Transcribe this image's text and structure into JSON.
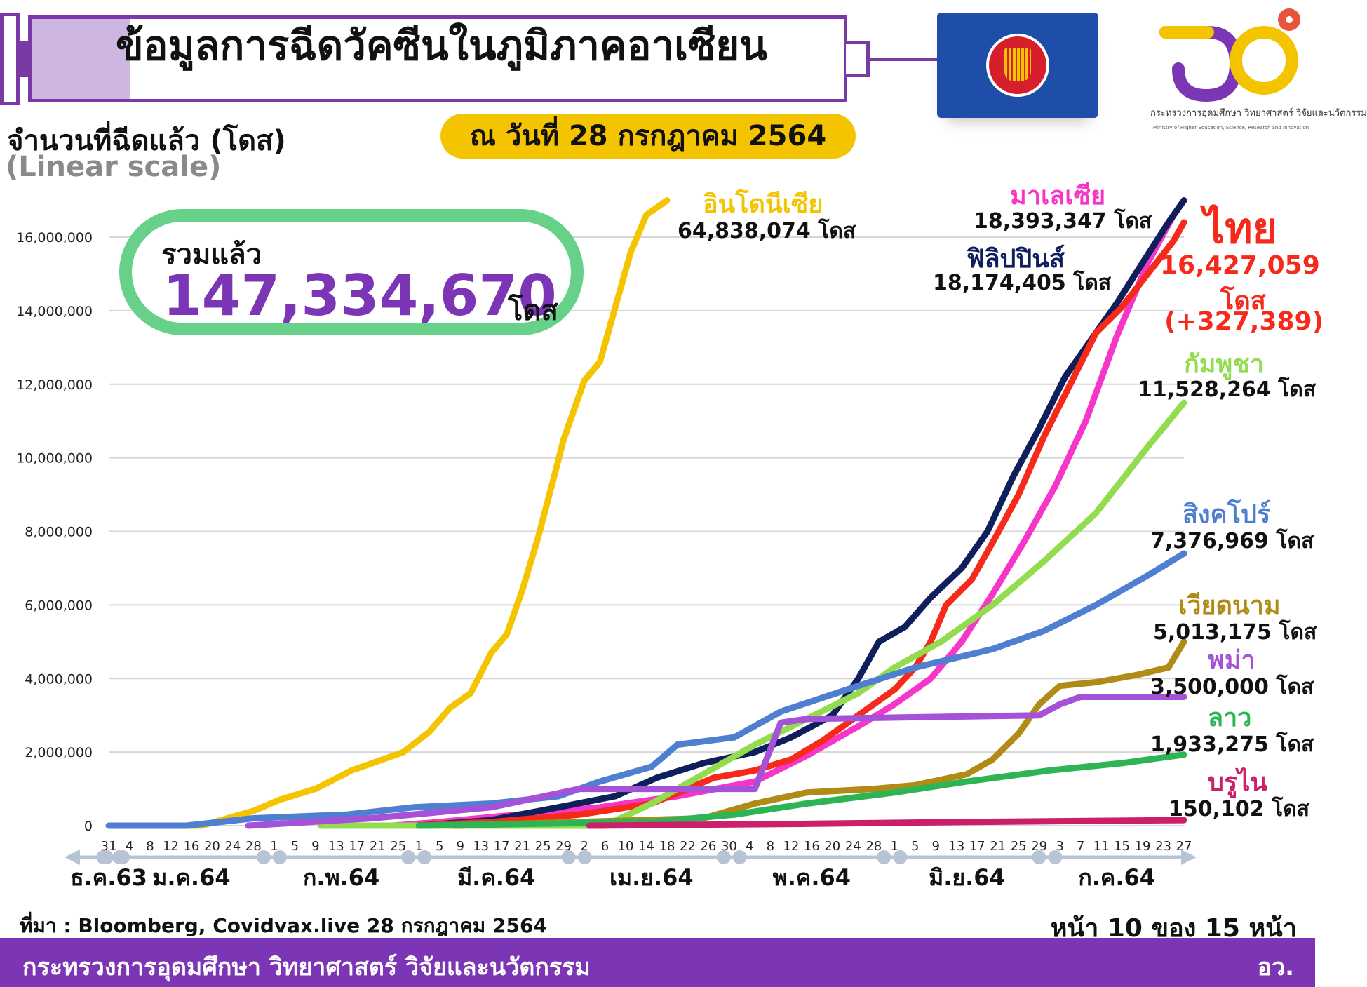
{
  "header": {
    "title": "ข้อมูลการฉีดวัคซีนในภูมิภาคอาเซียน",
    "date_label": "ณ วันที่ 28 กรกฎาคม 2564",
    "y_axis_title": "จำนวนที่ฉีดแล้ว (โดส)",
    "scale_note": "(Linear scale)"
  },
  "logo": {
    "ministry_name_th": "กระทรวงการอุดมศึกษา วิทยาศาสตร์ วิจัยและนวัตกรรม",
    "ministry_name_en": "Ministry of Higher Education, Science, Research and Innovation"
  },
  "total": {
    "label": "รวมแล้ว",
    "value": "147,334,670",
    "unit": "โดส"
  },
  "chart_data": {
    "type": "line",
    "title": "ข้อมูลการฉีดวัคซีนในภูมิภาคอาเซียน",
    "ylabel": "จำนวนที่ฉีดแล้ว (โดส)",
    "xlabel": "",
    "ylim": [
      0,
      17000000
    ],
    "yticks": [
      0,
      2000000,
      4000000,
      6000000,
      8000000,
      10000000,
      12000000,
      14000000,
      16000000
    ],
    "ytick_labels": [
      "0",
      "2,000,000",
      "4,000,000",
      "6,000,000",
      "8,000,000",
      "10,000,000",
      "12,000,000",
      "14,000,000",
      "16,000,000"
    ],
    "xlim": [
      "2020-12-31",
      "2021-07-27"
    ],
    "grid": true,
    "day_ticks": [
      {
        "label": "31",
        "date": "2020-12-31"
      },
      {
        "label": "4",
        "date": "2021-01-04"
      },
      {
        "label": "8",
        "date": "2021-01-08"
      },
      {
        "label": "12",
        "date": "2021-01-12"
      },
      {
        "label": "16",
        "date": "2021-01-16"
      },
      {
        "label": "20",
        "date": "2021-01-20"
      },
      {
        "label": "24",
        "date": "2021-01-24"
      },
      {
        "label": "28",
        "date": "2021-01-28"
      },
      {
        "label": "1",
        "date": "2021-02-01"
      },
      {
        "label": "5",
        "date": "2021-02-05"
      },
      {
        "label": "9",
        "date": "2021-02-09"
      },
      {
        "label": "13",
        "date": "2021-02-13"
      },
      {
        "label": "17",
        "date": "2021-02-17"
      },
      {
        "label": "21",
        "date": "2021-02-21"
      },
      {
        "label": "25",
        "date": "2021-02-25"
      },
      {
        "label": "1",
        "date": "2021-03-01"
      },
      {
        "label": "5",
        "date": "2021-03-05"
      },
      {
        "label": "9",
        "date": "2021-03-09"
      },
      {
        "label": "13",
        "date": "2021-03-13"
      },
      {
        "label": "17",
        "date": "2021-03-17"
      },
      {
        "label": "21",
        "date": "2021-03-21"
      },
      {
        "label": "25",
        "date": "2021-03-25"
      },
      {
        "label": "29",
        "date": "2021-03-29"
      },
      {
        "label": "2",
        "date": "2021-04-02"
      },
      {
        "label": "6",
        "date": "2021-04-06"
      },
      {
        "label": "10",
        "date": "2021-04-10"
      },
      {
        "label": "14",
        "date": "2021-04-14"
      },
      {
        "label": "18",
        "date": "2021-04-18"
      },
      {
        "label": "22",
        "date": "2021-04-22"
      },
      {
        "label": "26",
        "date": "2021-04-26"
      },
      {
        "label": "30",
        "date": "2021-04-30"
      },
      {
        "label": "4",
        "date": "2021-05-04"
      },
      {
        "label": "8",
        "date": "2021-05-08"
      },
      {
        "label": "12",
        "date": "2021-05-12"
      },
      {
        "label": "16",
        "date": "2021-05-16"
      },
      {
        "label": "20",
        "date": "2021-05-20"
      },
      {
        "label": "24",
        "date": "2021-05-24"
      },
      {
        "label": "28",
        "date": "2021-05-28"
      },
      {
        "label": "1",
        "date": "2021-06-01"
      },
      {
        "label": "5",
        "date": "2021-06-05"
      },
      {
        "label": "9",
        "date": "2021-06-09"
      },
      {
        "label": "13",
        "date": "2021-06-13"
      },
      {
        "label": "17",
        "date": "2021-06-17"
      },
      {
        "label": "21",
        "date": "2021-06-21"
      },
      {
        "label": "25",
        "date": "2021-06-25"
      },
      {
        "label": "29",
        "date": "2021-06-29"
      },
      {
        "label": "3",
        "date": "2021-07-03"
      },
      {
        "label": "7",
        "date": "2021-07-07"
      },
      {
        "label": "11",
        "date": "2021-07-11"
      },
      {
        "label": "15",
        "date": "2021-07-15"
      },
      {
        "label": "19",
        "date": "2021-07-19"
      },
      {
        "label": "23",
        "date": "2021-07-23"
      },
      {
        "label": "27",
        "date": "2021-07-27"
      }
    ],
    "month_labels": [
      {
        "label": "ธ.ค.63",
        "date": "2020-12-31"
      },
      {
        "label": "ม.ค.64",
        "date": "2021-01-16"
      },
      {
        "label": "ก.พ.64",
        "date": "2021-02-14"
      },
      {
        "label": "มี.ค.64",
        "date": "2021-03-16"
      },
      {
        "label": "เม.ย.64",
        "date": "2021-04-15"
      },
      {
        "label": "พ.ค.64",
        "date": "2021-05-16"
      },
      {
        "label": "มิ.ย.64",
        "date": "2021-06-15"
      },
      {
        "label": "ก.ค.64",
        "date": "2021-07-14"
      }
    ],
    "month_boundaries": [
      "2021-01-01",
      "2021-02-01",
      "2021-03-01",
      "2021-04-01",
      "2021-05-01",
      "2021-06-01",
      "2021-07-01"
    ],
    "series": [
      {
        "name": "อินโดนีเซีย",
        "total_label": "64,838,074 โดส",
        "color": "#f5c400",
        "points": [
          [
            "2021-01-12",
            0
          ],
          [
            "2021-01-18",
            0
          ],
          [
            "2021-01-23",
            200000
          ],
          [
            "2021-01-28",
            400000
          ],
          [
            "2021-02-02",
            700000
          ],
          [
            "2021-02-09",
            1000000
          ],
          [
            "2021-02-16",
            1500000
          ],
          [
            "2021-02-21",
            1750000
          ],
          [
            "2021-02-26",
            2000000
          ],
          [
            "2021-03-03",
            2550000
          ],
          [
            "2021-03-07",
            3200000
          ],
          [
            "2021-03-11",
            3600000
          ],
          [
            "2021-03-15",
            4700000
          ],
          [
            "2021-03-18",
            5200000
          ],
          [
            "2021-03-21",
            6400000
          ],
          [
            "2021-03-24",
            7800000
          ],
          [
            "2021-03-27",
            9400000
          ],
          [
            "2021-03-29",
            10500000
          ],
          [
            "2021-04-02",
            12100000
          ],
          [
            "2021-04-05",
            12600000
          ],
          [
            "2021-04-08",
            14100000
          ],
          [
            "2021-04-11",
            15600000
          ],
          [
            "2021-04-14",
            16600000
          ],
          [
            "2021-04-18",
            17000000
          ]
        ]
      },
      {
        "name": "มาเลเซีย",
        "total_label": "18,393,347 โดส",
        "color": "#f536c8",
        "points": [
          [
            "2021-02-24",
            0
          ],
          [
            "2021-03-05",
            100000
          ],
          [
            "2021-03-20",
            300000
          ],
          [
            "2021-04-05",
            500000
          ],
          [
            "2021-04-20",
            800000
          ],
          [
            "2021-05-05",
            1200000
          ],
          [
            "2021-05-15",
            1900000
          ],
          [
            "2021-05-20",
            2300000
          ],
          [
            "2021-05-25",
            2700000
          ],
          [
            "2021-06-01",
            3300000
          ],
          [
            "2021-06-08",
            4000000
          ],
          [
            "2021-06-14",
            5000000
          ],
          [
            "2021-06-20",
            6300000
          ],
          [
            "2021-06-26",
            7700000
          ],
          [
            "2021-07-02",
            9200000
          ],
          [
            "2021-07-08",
            11000000
          ],
          [
            "2021-07-14",
            13300000
          ],
          [
            "2021-07-20",
            15300000
          ],
          [
            "2021-07-25",
            16600000
          ],
          [
            "2021-07-27",
            17000000
          ]
        ]
      },
      {
        "name": "ฟิลิปปินส์",
        "total_label": "18,174,405 โดส",
        "color": "#0f1f5c",
        "points": [
          [
            "2021-03-01",
            0
          ],
          [
            "2021-03-15",
            150000
          ],
          [
            "2021-03-28",
            500000
          ],
          [
            "2021-04-08",
            800000
          ],
          [
            "2021-04-16",
            1300000
          ],
          [
            "2021-04-25",
            1700000
          ],
          [
            "2021-05-05",
            2000000
          ],
          [
            "2021-05-12",
            2400000
          ],
          [
            "2021-05-20",
            3000000
          ],
          [
            "2021-05-25",
            4000000
          ],
          [
            "2021-05-29",
            5000000
          ],
          [
            "2021-06-03",
            5400000
          ],
          [
            "2021-06-08",
            6200000
          ],
          [
            "2021-06-14",
            7000000
          ],
          [
            "2021-06-19",
            8000000
          ],
          [
            "2021-06-24",
            9500000
          ],
          [
            "2021-06-29",
            10800000
          ],
          [
            "2021-07-04",
            12200000
          ],
          [
            "2021-07-09",
            13200000
          ],
          [
            "2021-07-14",
            14200000
          ],
          [
            "2021-07-19",
            15300000
          ],
          [
            "2021-07-24",
            16400000
          ],
          [
            "2021-07-27",
            17000000
          ]
        ]
      },
      {
        "name": "ไทย",
        "total_label": "16,427,059\nโดส\n(+327,389)",
        "color": "#f52a1a",
        "points": [
          [
            "2021-02-28",
            0
          ],
          [
            "2021-03-15",
            100000
          ],
          [
            "2021-04-01",
            300000
          ],
          [
            "2021-04-15",
            600000
          ],
          [
            "2021-04-22",
            1000000
          ],
          [
            "2021-04-27",
            1300000
          ],
          [
            "2021-05-05",
            1500000
          ],
          [
            "2021-05-12",
            1800000
          ],
          [
            "2021-05-18",
            2300000
          ],
          [
            "2021-05-22",
            2700000
          ],
          [
            "2021-05-27",
            3200000
          ],
          [
            "2021-06-01",
            3700000
          ],
          [
            "2021-06-05",
            4300000
          ],
          [
            "2021-06-08",
            5000000
          ],
          [
            "2021-06-11",
            6000000
          ],
          [
            "2021-06-16",
            6700000
          ],
          [
            "2021-06-20",
            7700000
          ],
          [
            "2021-06-25",
            9000000
          ],
          [
            "2021-06-30",
            10600000
          ],
          [
            "2021-07-05",
            12000000
          ],
          [
            "2021-07-10",
            13400000
          ],
          [
            "2021-07-15",
            14100000
          ],
          [
            "2021-07-20",
            15000000
          ],
          [
            "2021-07-25",
            15900000
          ],
          [
            "2021-07-27",
            16400000
          ]
        ]
      },
      {
        "name": "กัมพูชา",
        "total_label": "11,528,264 โดส",
        "color": "#94dc4f",
        "points": [
          [
            "2021-02-10",
            0
          ],
          [
            "2021-04-06",
            0
          ],
          [
            "2021-04-15",
            600000
          ],
          [
            "2021-04-25",
            1400000
          ],
          [
            "2021-05-05",
            2200000
          ],
          [
            "2021-05-15",
            2900000
          ],
          [
            "2021-05-25",
            3600000
          ],
          [
            "2021-06-01",
            4300000
          ],
          [
            "2021-06-10",
            5000000
          ],
          [
            "2021-06-20",
            6000000
          ],
          [
            "2021-06-30",
            7200000
          ],
          [
            "2021-07-10",
            8500000
          ],
          [
            "2021-07-20",
            10300000
          ],
          [
            "2021-07-27",
            11500000
          ]
        ]
      },
      {
        "name": "สิงคโปร์",
        "total_label": "7,376,969 โดส",
        "color": "#4f7fd0",
        "points": [
          [
            "2020-12-31",
            0
          ],
          [
            "2021-01-15",
            0
          ],
          [
            "2021-01-28",
            200000
          ],
          [
            "2021-02-15",
            300000
          ],
          [
            "2021-02-28",
            500000
          ],
          [
            "2021-03-15",
            600000
          ],
          [
            "2021-03-28",
            800000
          ],
          [
            "2021-04-05",
            1200000
          ],
          [
            "2021-04-15",
            1600000
          ],
          [
            "2021-04-20",
            2200000
          ],
          [
            "2021-05-01",
            2400000
          ],
          [
            "2021-05-10",
            3100000
          ],
          [
            "2021-05-25",
            3800000
          ],
          [
            "2021-06-05",
            4300000
          ],
          [
            "2021-06-20",
            4800000
          ],
          [
            "2021-06-30",
            5300000
          ],
          [
            "2021-07-10",
            6000000
          ],
          [
            "2021-07-20",
            6800000
          ],
          [
            "2021-07-27",
            7400000
          ]
        ]
      },
      {
        "name": "เวียดนาม",
        "total_label": "5,013,175 โดส",
        "color": "#b08c17",
        "points": [
          [
            "2021-03-08",
            0
          ],
          [
            "2021-04-25",
            200000
          ],
          [
            "2021-05-05",
            600000
          ],
          [
            "2021-05-15",
            900000
          ],
          [
            "2021-05-28",
            1000000
          ],
          [
            "2021-06-05",
            1100000
          ],
          [
            "2021-06-15",
            1400000
          ],
          [
            "2021-06-20",
            1800000
          ],
          [
            "2021-06-25",
            2500000
          ],
          [
            "2021-06-29",
            3300000
          ],
          [
            "2021-07-03",
            3800000
          ],
          [
            "2021-07-10",
            3900000
          ],
          [
            "2021-07-18",
            4100000
          ],
          [
            "2021-07-24",
            4300000
          ],
          [
            "2021-07-27",
            5000000
          ]
        ]
      },
      {
        "name": "พม่า",
        "total_label": "3,500,000 โดส",
        "color": "#a552d8",
        "points": [
          [
            "2021-01-27",
            0
          ],
          [
            "2021-02-20",
            200000
          ],
          [
            "2021-03-15",
            500000
          ],
          [
            "2021-04-01",
            1000000
          ],
          [
            "2021-05-05",
            1000000
          ],
          [
            "2021-05-10",
            2800000
          ],
          [
            "2021-05-15",
            2900000
          ],
          [
            "2021-06-29",
            3000000
          ],
          [
            "2021-07-03",
            3300000
          ],
          [
            "2021-07-07",
            3500000
          ],
          [
            "2021-07-27",
            3500000
          ]
        ]
      },
      {
        "name": "ลาว",
        "total_label": "1,933,275 โดส",
        "color": "#2db555",
        "points": [
          [
            "2021-03-01",
            0
          ],
          [
            "2021-04-15",
            100000
          ],
          [
            "2021-05-01",
            300000
          ],
          [
            "2021-05-15",
            600000
          ],
          [
            "2021-06-01",
            900000
          ],
          [
            "2021-06-15",
            1200000
          ],
          [
            "2021-07-01",
            1500000
          ],
          [
            "2021-07-15",
            1700000
          ],
          [
            "2021-07-27",
            1930000
          ]
        ]
      },
      {
        "name": "บรูไน",
        "total_label": "150,102 โดส",
        "color": "#cc1f6a",
        "points": [
          [
            "2021-04-03",
            0
          ],
          [
            "2021-05-15",
            50000
          ],
          [
            "2021-06-15",
            100000
          ],
          [
            "2021-07-27",
            150000
          ]
        ]
      }
    ]
  },
  "series_labels": {
    "indonesia": {
      "name": "อินโดนีเซีย",
      "value": "64,838,074 โดส"
    },
    "malaysia": {
      "name": "มาเลเซีย",
      "value": "18,393,347 โดส"
    },
    "philippines": {
      "name": "ฟิลิปปินส์",
      "value": "18,174,405 โดส"
    },
    "thailand": {
      "name": "ไทย",
      "value": "16,427,059",
      "unit": "โดส",
      "change": "(+327,389)"
    },
    "cambodia": {
      "name": "กัมพูชา",
      "value": "11,528,264 โดส"
    },
    "singapore": {
      "name": "สิงคโปร์",
      "value": "7,376,969 โดส"
    },
    "vietnam": {
      "name": "เวียดนาม",
      "value": "5,013,175 โดส"
    },
    "myanmar": {
      "name": "พม่า",
      "value": "3,500,000 โดส"
    },
    "laos": {
      "name": "ลาว",
      "value": "1,933,275 โดส"
    },
    "brunei": {
      "name": "บรูไน",
      "value": "150,102 โดส"
    }
  },
  "footer": {
    "source": "ที่มา : Bloomberg, Covidvax.live 28 กรกฎาคม 2564",
    "page": "หน้า 10 ของ 15 หน้า",
    "ministry": "กระทรวงการอุดมศึกษา วิทยาศาสตร์ วิจัยและนวัตกรรม",
    "abbr": "อว."
  }
}
